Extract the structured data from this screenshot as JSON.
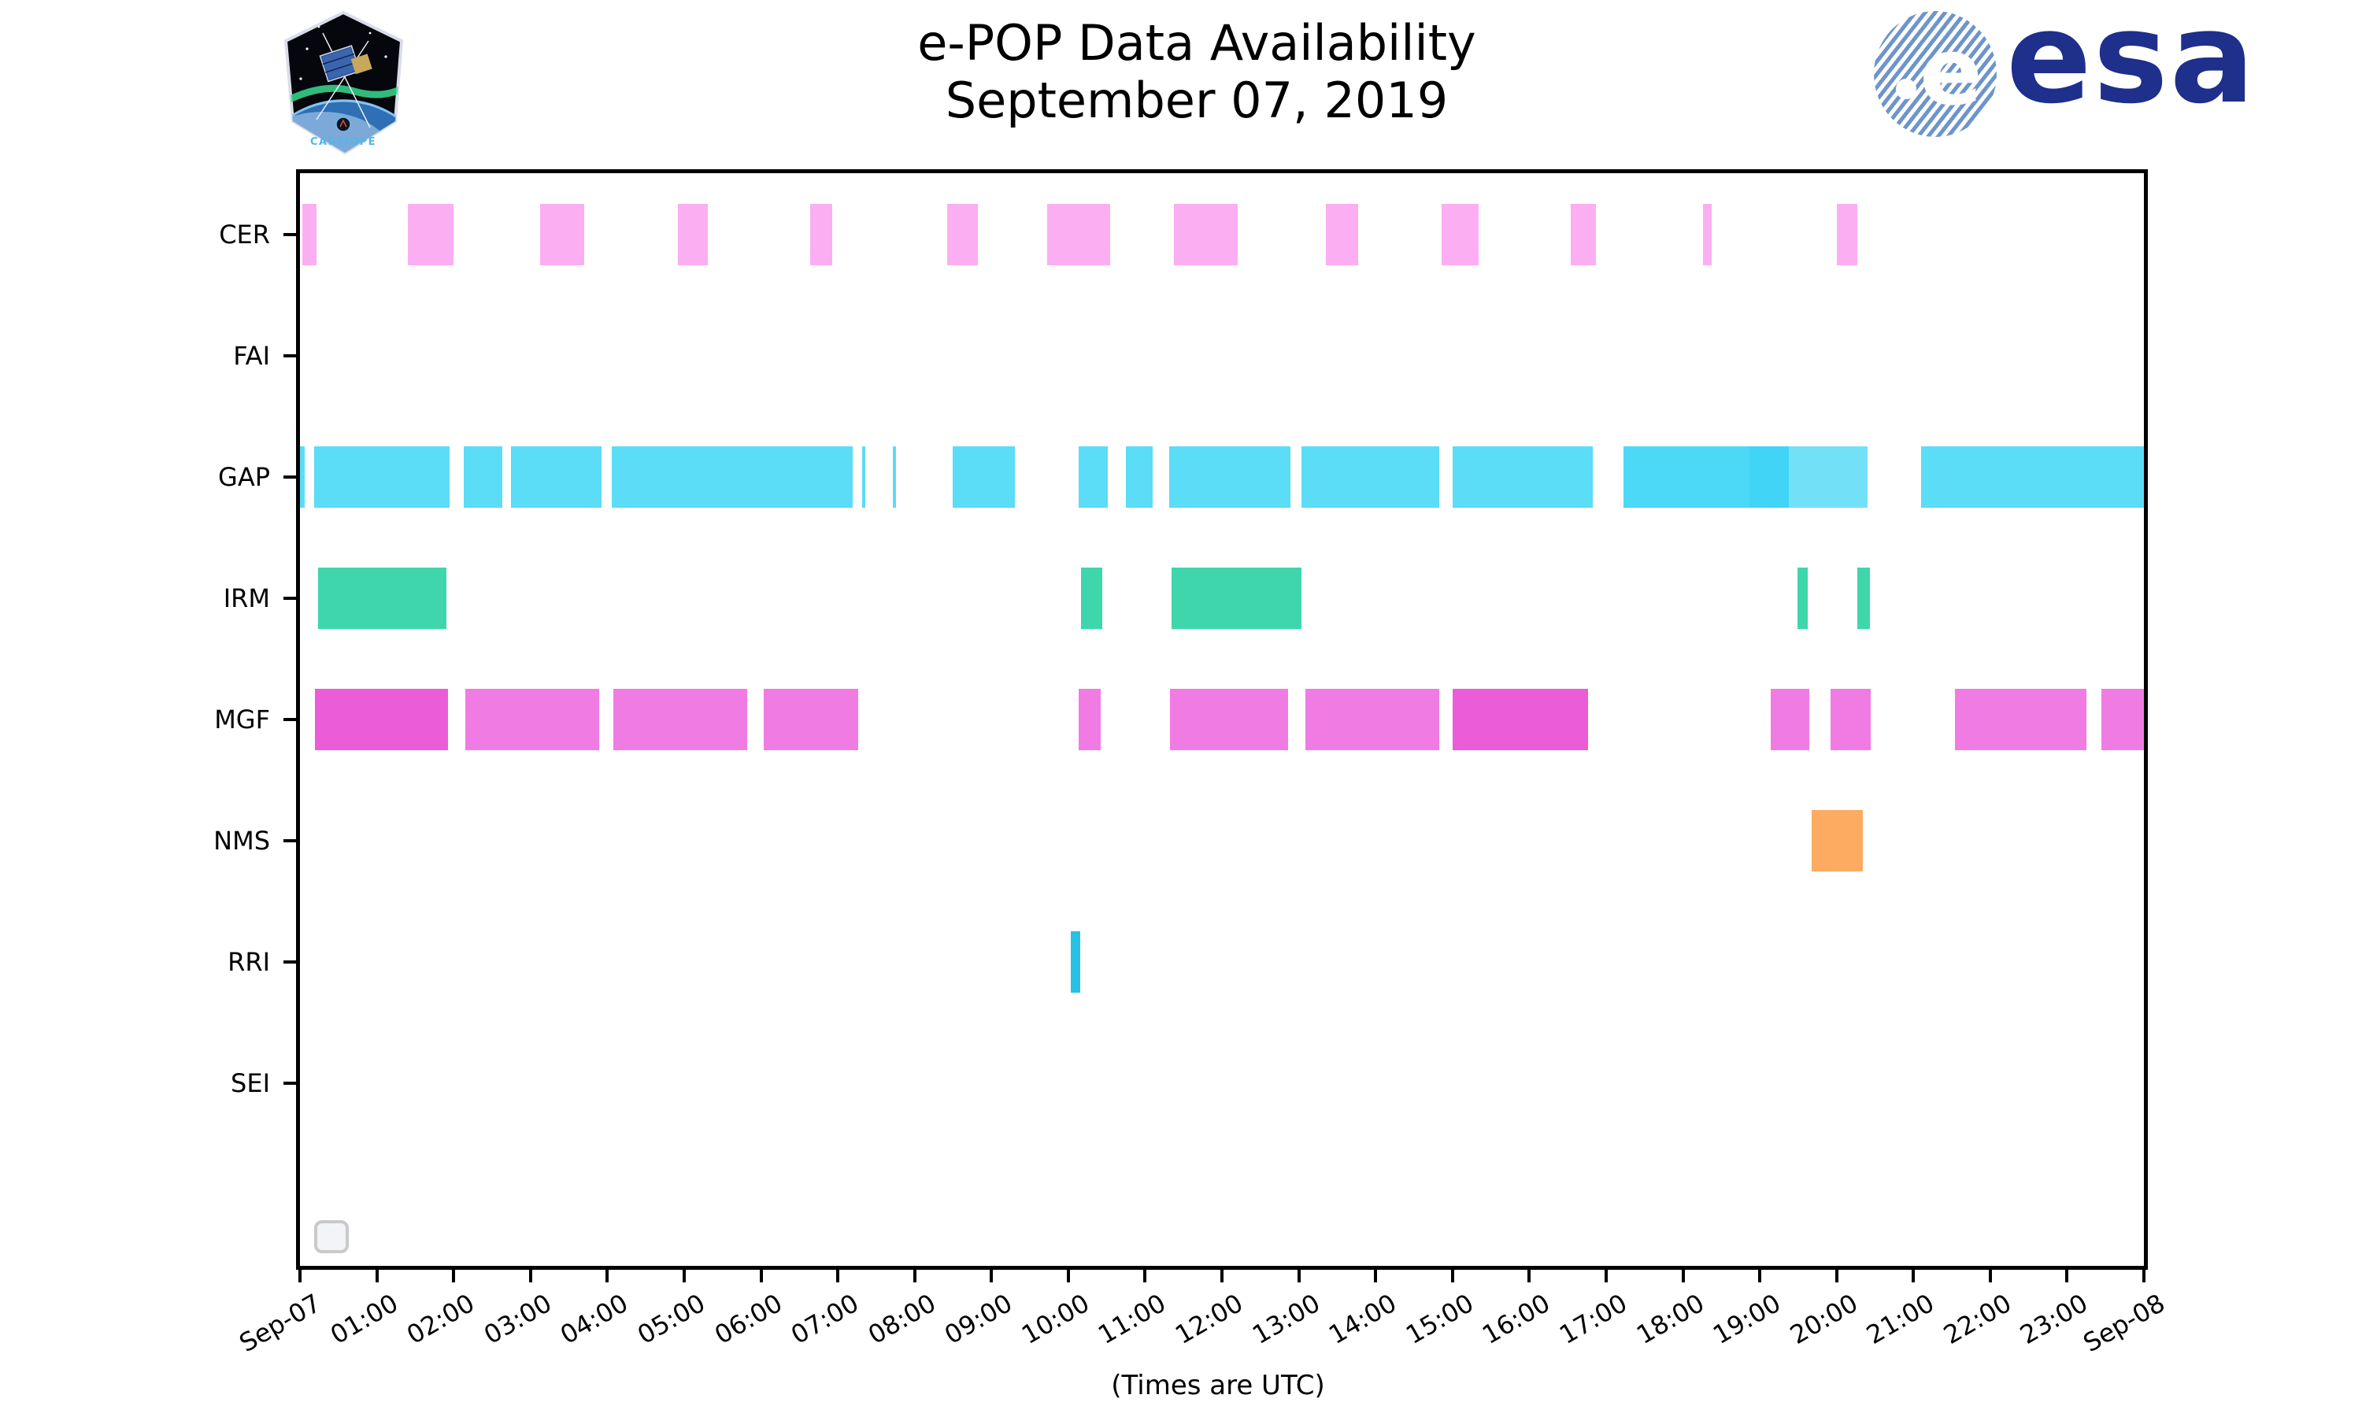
{
  "header": {
    "title": "e-POP Data Availability",
    "subtitle": "September 07, 2019",
    "mission_patch_text": "CASSIOPE",
    "esa_wordmark": "esa"
  },
  "chart_data": {
    "type": "gantt-availability",
    "title": "e-POP Data Availability",
    "subtitle": "September 07, 2019",
    "xlabel": "(Times are UTC)",
    "x_range_hours": [
      0,
      24
    ],
    "x_tick_labels": [
      "Sep-07",
      "01:00",
      "02:00",
      "03:00",
      "04:00",
      "05:00",
      "06:00",
      "07:00",
      "08:00",
      "09:00",
      "10:00",
      "11:00",
      "12:00",
      "13:00",
      "14:00",
      "15:00",
      "16:00",
      "17:00",
      "18:00",
      "19:00",
      "20:00",
      "21:00",
      "22:00",
      "23:00",
      "Sep-08"
    ],
    "legend": "empty",
    "rows": [
      {
        "label": "CER",
        "color": "#fcaef2",
        "intervals": [
          {
            "s": 0.03,
            "e": 0.22
          },
          {
            "s": 1.4,
            "e": 2.0
          },
          {
            "s": 3.13,
            "e": 3.7
          },
          {
            "s": 4.92,
            "e": 5.31
          },
          {
            "s": 6.64,
            "e": 6.93
          },
          {
            "s": 8.42,
            "e": 8.82
          },
          {
            "s": 9.73,
            "e": 10.54
          },
          {
            "s": 11.37,
            "e": 12.21
          },
          {
            "s": 13.35,
            "e": 13.77
          },
          {
            "s": 14.86,
            "e": 15.34
          },
          {
            "s": 16.54,
            "e": 16.87
          },
          {
            "s": 18.26,
            "e": 18.37
          },
          {
            "s": 20.0,
            "e": 20.27
          }
        ]
      },
      {
        "label": "FAI",
        "color": "#f4b183",
        "intervals": []
      },
      {
        "label": "GAP",
        "color": "#5bdcf7",
        "intervals": [
          {
            "s": 0.0,
            "e": 0.06
          },
          {
            "s": 0.18,
            "e": 1.95
          },
          {
            "s": 2.13,
            "e": 2.63
          },
          {
            "s": 2.75,
            "e": 3.93
          },
          {
            "s": 4.06,
            "e": 7.19
          },
          {
            "s": 7.32,
            "e": 7.36
          },
          {
            "s": 7.72,
            "e": 7.76
          },
          {
            "s": 8.5,
            "e": 9.3
          },
          {
            "s": 10.14,
            "e": 10.51
          },
          {
            "s": 10.75,
            "e": 11.1
          },
          {
            "s": 11.31,
            "e": 12.89
          },
          {
            "s": 13.04,
            "e": 14.83
          },
          {
            "s": 15.0,
            "e": 16.83
          },
          {
            "s": 17.23,
            "e": 18.87,
            "c": "#4cd8f7"
          },
          {
            "s": 18.87,
            "e": 19.38,
            "c": "#41d4f7"
          },
          {
            "s": 19.38,
            "e": 20.4,
            "c": "#72e1f8"
          },
          {
            "s": 21.1,
            "e": 24.0
          }
        ]
      },
      {
        "label": "IRM",
        "color": "#3fd6ab",
        "intervals": [
          {
            "s": 0.24,
            "e": 1.91
          },
          {
            "s": 10.17,
            "e": 10.44
          },
          {
            "s": 11.34,
            "e": 13.04
          },
          {
            "s": 19.49,
            "e": 19.62
          },
          {
            "s": 20.27,
            "e": 20.43
          }
        ]
      },
      {
        "label": "MGF",
        "color": "#f07ce3",
        "intervals": [
          {
            "s": 0.19,
            "e": 1.93,
            "c": "#eb5dd8"
          },
          {
            "s": 2.15,
            "e": 3.89
          },
          {
            "s": 4.08,
            "e": 5.82
          },
          {
            "s": 6.04,
            "e": 7.27
          },
          {
            "s": 10.14,
            "e": 10.42
          },
          {
            "s": 11.32,
            "e": 12.86
          },
          {
            "s": 13.09,
            "e": 14.83
          },
          {
            "s": 15.0,
            "e": 16.77,
            "c": "#eb5dd8"
          },
          {
            "s": 19.14,
            "e": 19.64
          },
          {
            "s": 19.92,
            "e": 20.44
          },
          {
            "s": 21.54,
            "e": 23.25
          },
          {
            "s": 23.45,
            "e": 24.0
          }
        ]
      },
      {
        "label": "NMS",
        "color": "#fcab60",
        "intervals": [
          {
            "s": 19.68,
            "e": 20.34
          }
        ]
      },
      {
        "label": "RRI",
        "color": "#28c0e5",
        "intervals": [
          {
            "s": 10.03,
            "e": 10.16
          }
        ]
      },
      {
        "label": "SEI",
        "color": "#cccccc",
        "intervals": []
      }
    ]
  }
}
